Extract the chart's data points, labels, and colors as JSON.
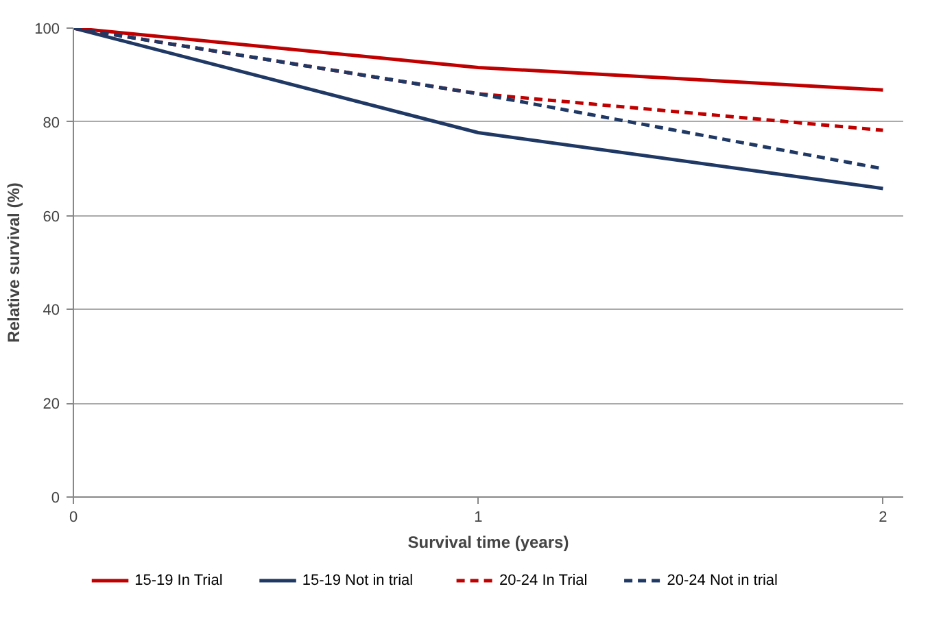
{
  "chart_data": {
    "type": "line",
    "xlabel": "Survival time (years)",
    "ylabel": "Relative survival (%)",
    "x": [
      0,
      1,
      2
    ],
    "xlim": [
      0,
      2.05
    ],
    "xticks": [
      0,
      1,
      2
    ],
    "ylim": [
      0,
      100
    ],
    "yticks": [
      0,
      20,
      40,
      60,
      80,
      100
    ],
    "grid": "y",
    "legend": "bottom",
    "marker": "none",
    "series": [
      {
        "name": "15-19 In Trial",
        "color": "#c00000",
        "values": [
          100,
          91.6,
          86.8
        ],
        "line_style": "solid"
      },
      {
        "name": "15-19 Not in trial",
        "color": "#1f3864",
        "values": [
          100,
          77.7,
          65.8
        ],
        "line_style": "solid"
      },
      {
        "name": "20-24 In Trial",
        "color": "#c00000",
        "values": [
          100,
          86,
          78.2
        ],
        "line_style": "dashed"
      },
      {
        "name": "20-24 Not in trial",
        "color": "#1f3864",
        "values": [
          100,
          86,
          70
        ],
        "line_style": "dashed"
      }
    ]
  }
}
